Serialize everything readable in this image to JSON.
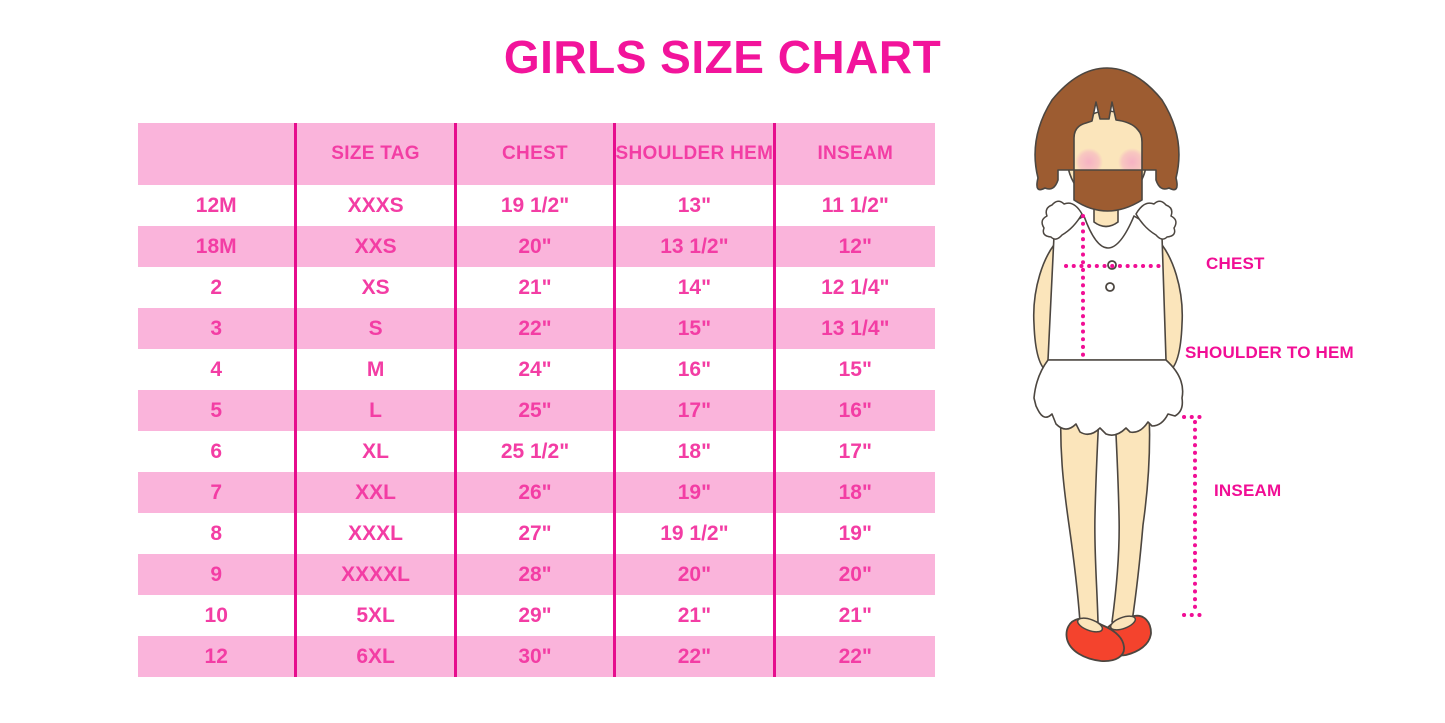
{
  "title": "GIRLS SIZE CHART",
  "chart_data": {
    "type": "table",
    "title": "GIRLS SIZE CHART",
    "columns": [
      "",
      "SIZE TAG",
      "CHEST",
      "SHOULDER HEM",
      "INSEAM"
    ],
    "rows": [
      [
        "12M",
        "XXXS",
        "19 1/2\"",
        "13\"",
        "11 1/2\""
      ],
      [
        "18M",
        "XXS",
        "20\"",
        "13 1/2\"",
        "12\""
      ],
      [
        "2",
        "XS",
        "21\"",
        "14\"",
        "12 1/4\""
      ],
      [
        "3",
        "S",
        "22\"",
        "15\"",
        "13 1/4\""
      ],
      [
        "4",
        "M",
        "24\"",
        "16\"",
        "15\""
      ],
      [
        "5",
        "L",
        "25\"",
        "17\"",
        "16\""
      ],
      [
        "6",
        "XL",
        "25 1/2\"",
        "18\"",
        "17\""
      ],
      [
        "7",
        "XXL",
        "26\"",
        "19\"",
        "18\""
      ],
      [
        "8",
        "XXXL",
        "27\"",
        "19 1/2\"",
        "19\""
      ],
      [
        "9",
        "XXXXL",
        "28\"",
        "20\"",
        "20\""
      ],
      [
        "10",
        "5XL",
        "29\"",
        "21\"",
        "21\""
      ],
      [
        "12",
        "6XL",
        "30\"",
        "22\"",
        "22\""
      ]
    ],
    "row_striping": "header pink, then alternating white/pink starting with white",
    "legend_position": "none",
    "grid": "vertical column dividers only"
  },
  "diagram": {
    "labels": {
      "chest": "CHEST",
      "shoulder_to_hem": "SHOULDER TO HEM",
      "inseam": "INSEAM"
    }
  },
  "colors": {
    "title_pink": "#f2149b",
    "table_text_pink": "#f33da4",
    "row_pink": "#fab4db",
    "divider_magenta": "#e60d8d",
    "label_magenta": "#f10e95",
    "hair_brown": "#9d5c31",
    "skin_tone": "#fbe5bb",
    "blush_pink": "#f5afc4",
    "shoe_red": "#f4432d",
    "outline_dark": "#4c4640"
  }
}
